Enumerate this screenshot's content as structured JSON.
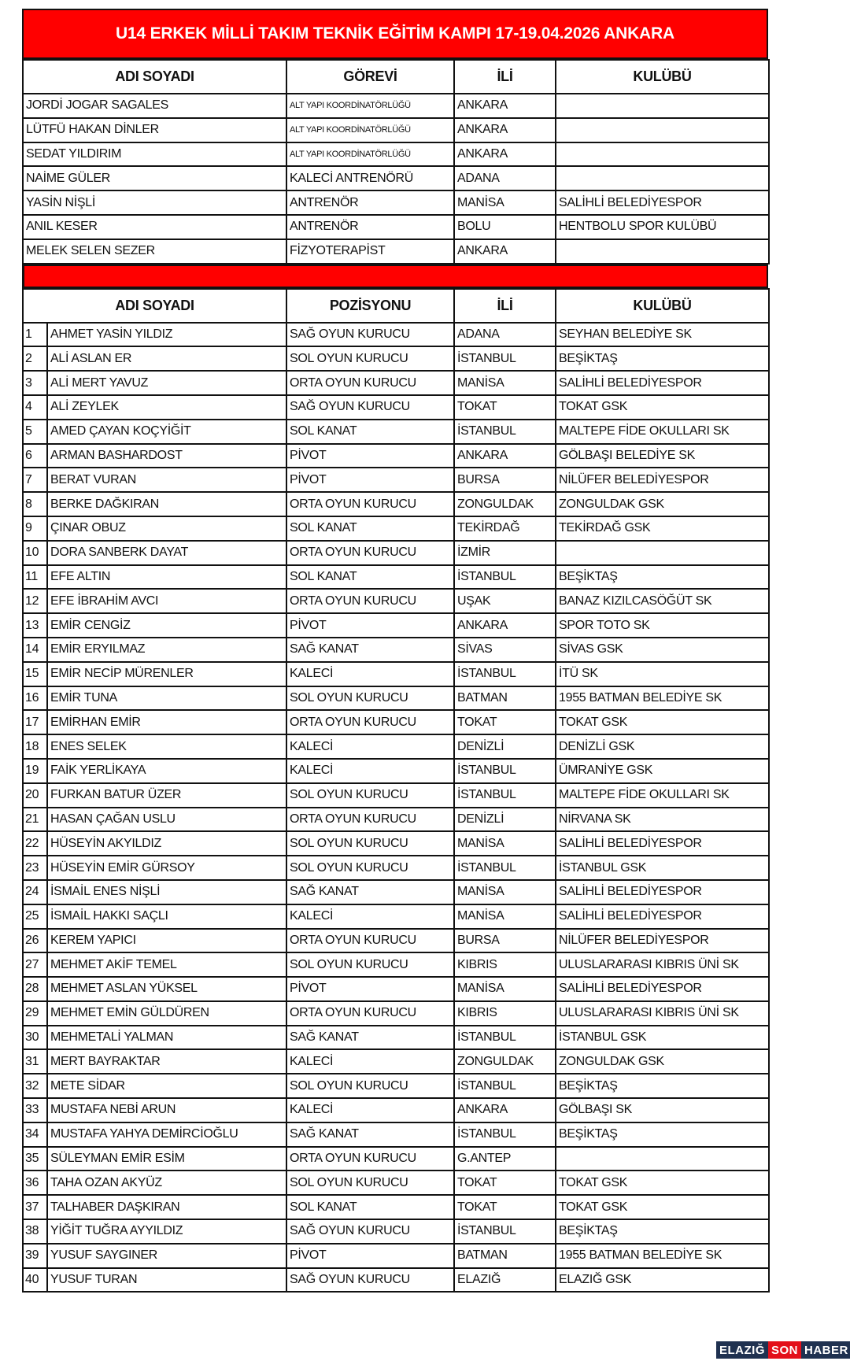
{
  "title": "U14 ERKEK MİLLİ TAKIM TEKNİK EĞİTİM KAMPI 17-19.04.2026 ANKARA",
  "staff_headers": [
    "ADI SOYADI",
    "GÖREVİ",
    "İLİ",
    "KULÜBÜ"
  ],
  "staff": [
    {
      "name": "JORDİ JOGAR SAGALES",
      "role": "ALT YAPI KOORDİNATÖRLÜĞÜ",
      "city": "ANKARA",
      "club": ""
    },
    {
      "name": "LÜTFÜ HAKAN DİNLER",
      "role": "ALT YAPI KOORDİNATÖRLÜĞÜ",
      "city": "ANKARA",
      "club": ""
    },
    {
      "name": "SEDAT YILDIRIM",
      "role": "ALT YAPI KOORDİNATÖRLÜĞÜ",
      "city": "ANKARA",
      "club": ""
    },
    {
      "name": "NAİME GÜLER",
      "role": "KALECİ ANTRENÖRÜ",
      "city": "ADANA",
      "club": ""
    },
    {
      "name": "YASİN NİŞLİ",
      "role": "ANTRENÖR",
      "city": "MANİSA",
      "club": "SALİHLİ BELEDİYESPOR"
    },
    {
      "name": "ANIL KESER",
      "role": "ANTRENÖR",
      "city": "BOLU",
      "club": "HENTBOLU SPOR KULÜBÜ"
    },
    {
      "name": "MELEK SELEN SEZER",
      "role": "FİZYOTERAPİST",
      "city": "ANKARA",
      "club": ""
    }
  ],
  "player_headers": [
    "ADI SOYADI",
    "POZİSYONU",
    "İLİ",
    "KULÜBÜ"
  ],
  "players": [
    {
      "no": "1",
      "name": "AHMET YASİN YILDIZ",
      "pos": "SAĞ OYUN KURUCU",
      "city": "ADANA",
      "club": "SEYHAN BELEDİYE SK"
    },
    {
      "no": "2",
      "name": "ALİ ASLAN ER",
      "pos": "SOL OYUN KURUCU",
      "city": "İSTANBUL",
      "club": "BEŞİKTAŞ"
    },
    {
      "no": "3",
      "name": "ALİ MERT YAVUZ",
      "pos": "ORTA OYUN KURUCU",
      "city": "MANİSA",
      "club": "SALİHLİ BELEDİYESPOR"
    },
    {
      "no": "4",
      "name": "ALİ ZEYLEK",
      "pos": "SAĞ OYUN KURUCU",
      "city": "TOKAT",
      "club": "TOKAT GSK"
    },
    {
      "no": "5",
      "name": "AMED ÇAYAN KOÇYİĞİT",
      "pos": "SOL KANAT",
      "city": "İSTANBUL",
      "club": "MALTEPE FİDE OKULLARI SK"
    },
    {
      "no": "6",
      "name": "ARMAN BASHARDOST",
      "pos": "PİVOT",
      "city": "ANKARA",
      "club": "GÖLBAŞI BELEDİYE SK"
    },
    {
      "no": "7",
      "name": "BERAT VURAN",
      "pos": "PİVOT",
      "city": "BURSA",
      "club": "NİLÜFER BELEDİYESPOR"
    },
    {
      "no": "8",
      "name": "BERKE DAĞKIRAN",
      "pos": "ORTA OYUN KURUCU",
      "city": "ZONGULDAK",
      "club": "ZONGULDAK GSK"
    },
    {
      "no": "9",
      "name": "ÇINAR OBUZ",
      "pos": "SOL KANAT",
      "city": "TEKİRDAĞ",
      "club": "TEKİRDAĞ GSK"
    },
    {
      "no": "10",
      "name": "DORA SANBERK DAYAT",
      "pos": "ORTA OYUN KURUCU",
      "city": "İZMİR",
      "club": ""
    },
    {
      "no": "11",
      "name": "EFE ALTIN",
      "pos": "SOL KANAT",
      "city": "İSTANBUL",
      "club": "BEŞİKTAŞ"
    },
    {
      "no": "12",
      "name": "EFE İBRAHİM AVCI",
      "pos": "ORTA OYUN KURUCU",
      "city": "UŞAK",
      "club": "BANAZ KIZILCASÖĞÜT SK"
    },
    {
      "no": "13",
      "name": "EMİR CENGİZ",
      "pos": "PİVOT",
      "city": "ANKARA",
      "club": "SPOR TOTO SK"
    },
    {
      "no": "14",
      "name": "EMİR ERYILMAZ",
      "pos": "SAĞ KANAT",
      "city": "SİVAS",
      "club": "SİVAS GSK"
    },
    {
      "no": "15",
      "name": "EMİR NECİP MÜRENLER",
      "pos": "KALECİ",
      "city": "İSTANBUL",
      "club": "İTÜ SK"
    },
    {
      "no": "16",
      "name": "EMİR TUNA",
      "pos": "SOL OYUN KURUCU",
      "city": "BATMAN",
      "club": "1955 BATMAN BELEDİYE SK"
    },
    {
      "no": "17",
      "name": "EMİRHAN EMİR",
      "pos": "ORTA OYUN KURUCU",
      "city": "TOKAT",
      "club": "TOKAT GSK"
    },
    {
      "no": "18",
      "name": "ENES SELEK",
      "pos": "KALECİ",
      "city": "DENİZLİ",
      "club": "DENİZLİ GSK"
    },
    {
      "no": "19",
      "name": "FAİK YERLİKAYA",
      "pos": "KALECİ",
      "city": "İSTANBUL",
      "club": "ÜMRANİYE GSK"
    },
    {
      "no": "20",
      "name": "FURKAN BATUR ÜZER",
      "pos": "SOL OYUN KURUCU",
      "city": "İSTANBUL",
      "club": "MALTEPE FİDE OKULLARI SK"
    },
    {
      "no": "21",
      "name": "HASAN ÇAĞAN USLU",
      "pos": "ORTA OYUN KURUCU",
      "city": "DENİZLİ",
      "club": "NİRVANA SK"
    },
    {
      "no": "22",
      "name": "HÜSEYİN AKYILDIZ",
      "pos": "SOL OYUN KURUCU",
      "city": "MANİSA",
      "club": "SALİHLİ BELEDİYESPOR"
    },
    {
      "no": "23",
      "name": "HÜSEYİN EMİR GÜRSOY",
      "pos": "SOL OYUN KURUCU",
      "city": "İSTANBUL",
      "club": "İSTANBUL GSK"
    },
    {
      "no": "24",
      "name": "İSMAİL ENES NİŞLİ",
      "pos": "SAĞ KANAT",
      "city": "MANİSA",
      "club": "SALİHLİ BELEDİYESPOR"
    },
    {
      "no": "25",
      "name": "İSMAİL HAKKI SAÇLI",
      "pos": "KALECİ",
      "city": "MANİSA",
      "club": "SALİHLİ BELEDİYESPOR"
    },
    {
      "no": "26",
      "name": "KEREM YAPICI",
      "pos": "ORTA OYUN KURUCU",
      "city": "BURSA",
      "club": "NİLÜFER BELEDİYESPOR"
    },
    {
      "no": "27",
      "name": "MEHMET AKİF TEMEL",
      "pos": "SOL OYUN KURUCU",
      "city": "KIBRIS",
      "club": "ULUSLARARASI KIBRIS ÜNİ SK"
    },
    {
      "no": "28",
      "name": "MEHMET ASLAN YÜKSEL",
      "pos": "PİVOT",
      "city": "MANİSA",
      "club": "SALİHLİ BELEDİYESPOR"
    },
    {
      "no": "29",
      "name": "MEHMET EMİN GÜLDÜREN",
      "pos": "ORTA OYUN KURUCU",
      "city": "KIBRIS",
      "club": "ULUSLARARASI KIBRIS ÜNİ SK"
    },
    {
      "no": "30",
      "name": "MEHMETALİ YALMAN",
      "pos": "SAĞ KANAT",
      "city": "İSTANBUL",
      "club": "İSTANBUL GSK"
    },
    {
      "no": "31",
      "name": "MERT BAYRAKTAR",
      "pos": "KALECİ",
      "city": "ZONGULDAK",
      "club": "ZONGULDAK GSK"
    },
    {
      "no": "32",
      "name": "METE SİDAR",
      "pos": "SOL OYUN KURUCU",
      "city": "İSTANBUL",
      "club": "BEŞİKTAŞ"
    },
    {
      "no": "33",
      "name": "MUSTAFA NEBİ ARUN",
      "pos": "KALECİ",
      "city": "ANKARA",
      "club": "GÖLBAŞI SK"
    },
    {
      "no": "34",
      "name": "MUSTAFA YAHYA DEMİRCİOĞLU",
      "pos": "SAĞ KANAT",
      "city": "İSTANBUL",
      "club": "BEŞİKTAŞ"
    },
    {
      "no": "35",
      "name": "SÜLEYMAN EMİR ESİM",
      "pos": "ORTA OYUN KURUCU",
      "city": "G.ANTEP",
      "club": ""
    },
    {
      "no": "36",
      "name": "TAHA OZAN AKYÜZ",
      "pos": "SOL OYUN KURUCU",
      "city": "TOKAT",
      "club": "TOKAT GSK"
    },
    {
      "no": "37",
      "name": "TALHABER DAŞKIRAN",
      "pos": "SOL KANAT",
      "city": "TOKAT",
      "club": "TOKAT GSK"
    },
    {
      "no": "38",
      "name": "YİĞİT TUĞRA AYYILDIZ",
      "pos": "SAĞ OYUN KURUCU",
      "city": "İSTANBUL",
      "club": "BEŞİKTAŞ"
    },
    {
      "no": "39",
      "name": "YUSUF SAYGINER",
      "pos": "PİVOT",
      "city": "BATMAN",
      "club": "1955 BATMAN BELEDİYE SK"
    },
    {
      "no": "40",
      "name": "YUSUF TURAN",
      "pos": "SAĞ OYUN KURUCU",
      "city": "ELAZIĞ",
      "club": "ELAZIĞ GSK"
    }
  ],
  "watermark": {
    "part1": "ELAZIĞ",
    "part2": "SON",
    "part3": "HABER"
  },
  "colors": {
    "header_red": "#ff0000",
    "logo_navy": "#1f3150",
    "logo_red": "#e3101a"
  }
}
